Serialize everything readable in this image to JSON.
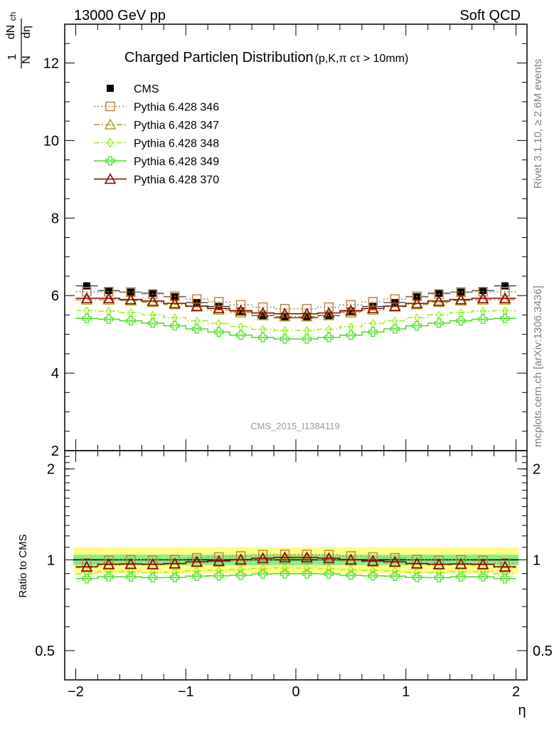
{
  "header": {
    "left": "13000 GeV pp",
    "right": "Soft QCD"
  },
  "side_text": {
    "rivet": "Rivet 3.1.10, ≥ 2.6M events",
    "mcplots": "mcplots.cern.ch [arXiv:1306.3436]"
  },
  "colors": {
    "cms": "#000000",
    "p346": "#b8864b",
    "p347": "#a8a020",
    "p348": "#99ee22",
    "p349": "#44dd22",
    "p370": "#8b0000",
    "band_outer": "#ffff88",
    "band_inner": "#88ee88"
  },
  "chart_data": [
    {
      "type": "line",
      "title_main": "Charged Particleη Distribution",
      "title_sub": "(p,K,π cτ > 10mm)",
      "ylabel_num": "1",
      "ylabel_den": "N",
      "ylabel_dN": "dN",
      "ylabel_ch": "ch",
      "ylabel_deta": "dη",
      "xlabel": "η",
      "xlim": [
        -2.1,
        2.1
      ],
      "ylim": [
        2,
        13
      ],
      "yticks": [
        2,
        4,
        6,
        8,
        10,
        12
      ],
      "ytick_labels": [
        "2",
        "4",
        "6",
        "8",
        "10",
        "12"
      ],
      "watermark": "CMS_2015_I1384119",
      "x": [
        -1.9,
        -1.7,
        -1.5,
        -1.3,
        -1.1,
        -0.9,
        -0.7,
        -0.5,
        -0.3,
        -0.1,
        0.1,
        0.3,
        0.5,
        0.7,
        0.9,
        1.1,
        1.3,
        1.5,
        1.7,
        1.9
      ],
      "series": [
        {
          "name": "CMS",
          "key": "cms",
          "style": "data",
          "marker": "square-filled",
          "values": [
            6.25,
            6.13,
            6.09,
            6.06,
            5.97,
            5.82,
            5.72,
            5.6,
            5.48,
            5.43,
            5.43,
            5.48,
            5.6,
            5.72,
            5.82,
            5.97,
            6.06,
            6.09,
            6.13,
            6.25
          ]
        },
        {
          "name": "Pythia 6.428 346",
          "key": "p346",
          "style": "dotted",
          "marker": "square-open",
          "values": [
            6.1,
            6.1,
            6.09,
            6.04,
            5.98,
            5.91,
            5.84,
            5.76,
            5.7,
            5.66,
            5.66,
            5.7,
            5.76,
            5.84,
            5.91,
            5.98,
            6.04,
            6.09,
            6.1,
            6.1
          ]
        },
        {
          "name": "Pythia 6.428 347",
          "key": "p347",
          "style": "dashdot",
          "marker": "triangle-open",
          "values": [
            5.89,
            5.89,
            5.87,
            5.83,
            5.77,
            5.71,
            5.63,
            5.56,
            5.49,
            5.46,
            5.46,
            5.49,
            5.56,
            5.63,
            5.71,
            5.77,
            5.83,
            5.87,
            5.89,
            5.89
          ]
        },
        {
          "name": "Pythia 6.428 348",
          "key": "p348",
          "style": "dashdot",
          "marker": "diamond-open",
          "values": [
            5.61,
            5.6,
            5.56,
            5.5,
            5.43,
            5.35,
            5.28,
            5.2,
            5.13,
            5.1,
            5.1,
            5.13,
            5.2,
            5.28,
            5.35,
            5.43,
            5.5,
            5.56,
            5.6,
            5.61
          ]
        },
        {
          "name": "Pythia 6.428 349",
          "key": "p349",
          "style": "solid",
          "marker": "cross-open",
          "values": [
            5.41,
            5.39,
            5.35,
            5.29,
            5.22,
            5.14,
            5.06,
            4.98,
            4.92,
            4.88,
            4.88,
            4.92,
            4.98,
            5.06,
            5.14,
            5.22,
            5.29,
            5.35,
            5.39,
            5.41
          ]
        },
        {
          "name": "Pythia 6.428 370",
          "key": "p370",
          "style": "solid",
          "marker": "triangle-open",
          "values": [
            5.93,
            5.93,
            5.9,
            5.86,
            5.8,
            5.73,
            5.67,
            5.61,
            5.55,
            5.53,
            5.53,
            5.55,
            5.61,
            5.67,
            5.73,
            5.8,
            5.86,
            5.9,
            5.93,
            5.93
          ]
        }
      ]
    },
    {
      "type": "line",
      "ylabel": "Ratio to CMS",
      "yscale": "log",
      "ylim": [
        0.4,
        2.3
      ],
      "yticks": [
        0.5,
        1,
        2
      ],
      "ytick_labels": [
        "0.5",
        "1",
        "2"
      ],
      "xticks": [
        -2,
        -1,
        0,
        1,
        2
      ],
      "xtick_labels": [
        "−2",
        "−1",
        "0",
        "1",
        "2"
      ],
      "band_outer": [
        0.9,
        1.1
      ],
      "band_inner": [
        0.96,
        1.04
      ],
      "x": [
        -1.9,
        -1.7,
        -1.5,
        -1.3,
        -1.1,
        -0.9,
        -0.7,
        -0.5,
        -0.3,
        -0.1,
        0.1,
        0.3,
        0.5,
        0.7,
        0.9,
        1.1,
        1.3,
        1.5,
        1.7,
        1.9
      ],
      "series": [
        {
          "key": "p346",
          "values": [
            0.976,
            0.995,
            1.0,
            0.997,
            1.002,
            1.015,
            1.021,
            1.029,
            1.04,
            1.042,
            1.042,
            1.04,
            1.029,
            1.021,
            1.015,
            1.002,
            0.997,
            1.0,
            0.995,
            0.976
          ]
        },
        {
          "key": "p347",
          "values": [
            0.942,
            0.961,
            0.964,
            0.962,
            0.966,
            0.981,
            0.984,
            0.993,
            1.002,
            1.006,
            1.006,
            1.002,
            0.993,
            0.984,
            0.981,
            0.966,
            0.962,
            0.964,
            0.961,
            0.942
          ]
        },
        {
          "key": "p348",
          "values": [
            0.898,
            0.914,
            0.913,
            0.908,
            0.91,
            0.919,
            0.923,
            0.929,
            0.936,
            0.939,
            0.939,
            0.936,
            0.929,
            0.923,
            0.919,
            0.91,
            0.908,
            0.913,
            0.914,
            0.898
          ]
        },
        {
          "key": "p349",
          "values": [
            0.866,
            0.879,
            0.878,
            0.873,
            0.874,
            0.883,
            0.885,
            0.889,
            0.898,
            0.899,
            0.899,
            0.898,
            0.889,
            0.885,
            0.883,
            0.874,
            0.873,
            0.878,
            0.879,
            0.866
          ]
        },
        {
          "key": "p370",
          "values": [
            0.949,
            0.967,
            0.969,
            0.967,
            0.972,
            0.985,
            0.991,
            1.002,
            1.013,
            1.018,
            1.018,
            1.013,
            1.002,
            0.991,
            0.985,
            0.972,
            0.967,
            0.969,
            0.967,
            0.949
          ]
        }
      ]
    }
  ]
}
